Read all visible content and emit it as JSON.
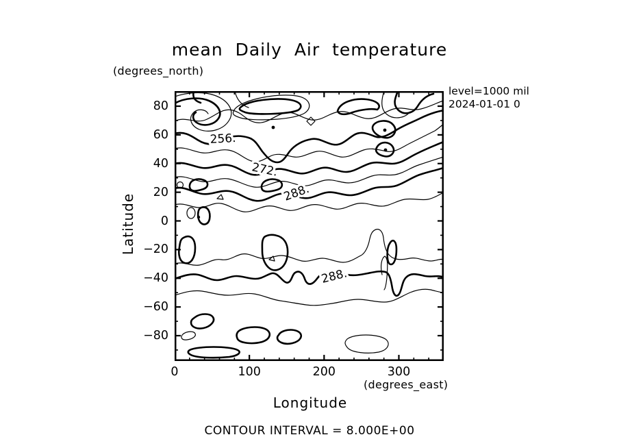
{
  "page": {
    "title": "mean Daily Air temperature",
    "footer": "CONTOUR INTERVAL = 8.000E+00"
  },
  "annotations": {
    "level": "level=1000 mil",
    "date": "2024-01-01 0"
  },
  "chart_data": {
    "type": "contour",
    "title": "mean Daily Air temperature",
    "contour_interval": 8.0,
    "contour_interval_label": "CONTOUR INTERVAL = 8.000E+00",
    "line_color": "#000000",
    "background_color": "#ffffff",
    "grid": false,
    "x_axis": {
      "label": "Longitude",
      "units_label": "(degrees_east)",
      "min": 0,
      "max": 360,
      "minor_step": 20,
      "major_step": 100,
      "tick_values": [
        0,
        100,
        200,
        300
      ],
      "tick_labels": [
        "0",
        "100",
        "200",
        "300"
      ]
    },
    "y_axis": {
      "label": "Latitude",
      "units_label": "(degrees_north)",
      "min": -90,
      "max": 90,
      "minor_step": 10,
      "major_step": 20,
      "tick_values": [
        80,
        60,
        40,
        20,
        0,
        -20,
        -40,
        -60,
        -80
      ],
      "tick_labels": [
        "80",
        "60",
        "40",
        "20",
        "0",
        "−20",
        "−40",
        "−60",
        "−80"
      ]
    },
    "thick_contour_levels": [
      256,
      272,
      288
    ],
    "contour_labels": [
      {
        "text": "256.",
        "value": 256,
        "region": "north"
      },
      {
        "text": "272.",
        "value": 272,
        "region": "north"
      },
      {
        "text": "288.",
        "value": 288,
        "region": "north"
      },
      {
        "text": "288.",
        "value": 288,
        "region": "south"
      }
    ],
    "side_annotations": [
      "level=1000 mil",
      "2024-01-01 0"
    ]
  }
}
